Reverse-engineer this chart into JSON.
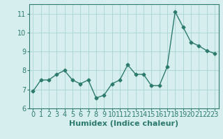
{
  "x": [
    0,
    1,
    2,
    3,
    4,
    5,
    6,
    7,
    8,
    9,
    10,
    11,
    12,
    13,
    14,
    15,
    16,
    17,
    18,
    19,
    20,
    21,
    22,
    23
  ],
  "y": [
    6.9,
    7.5,
    7.5,
    7.8,
    8.0,
    7.5,
    7.3,
    7.5,
    6.55,
    6.7,
    7.3,
    7.5,
    8.3,
    7.8,
    7.8,
    7.2,
    7.2,
    8.2,
    11.1,
    10.3,
    9.5,
    9.3,
    9.05,
    8.9
  ],
  "xlabel": "Humidex (Indice chaleur)",
  "ylim": [
    6,
    11.5
  ],
  "xlim": [
    -0.5,
    23.5
  ],
  "yticks": [
    6,
    7,
    8,
    9,
    10,
    11
  ],
  "xticks": [
    0,
    1,
    2,
    3,
    4,
    5,
    6,
    7,
    8,
    9,
    10,
    11,
    12,
    13,
    14,
    15,
    16,
    17,
    18,
    19,
    20,
    21,
    22,
    23
  ],
  "line_color": "#2d7a6e",
  "marker": "D",
  "marker_size": 2.5,
  "bg_color": "#d6eeee",
  "grid_color": "#b0d8d8",
  "xlabel_fontsize": 8,
  "tick_fontsize": 7
}
